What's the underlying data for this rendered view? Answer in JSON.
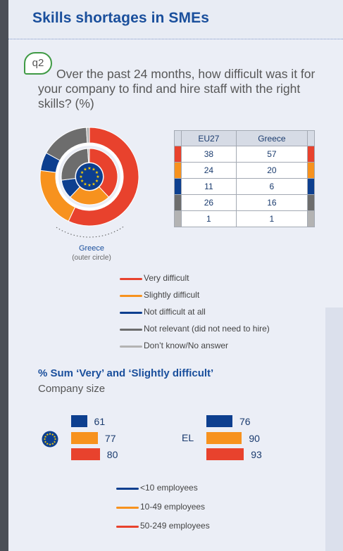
{
  "page_title": "Skills shortages in SMEs",
  "question": {
    "id": "q2",
    "text": "Over the past 24 months, how difficult was it for your company to find and hire staff with the right skills? (%)"
  },
  "colors": {
    "very_difficult": "#e8422d",
    "slightly_difficult": "#f7921e",
    "not_difficult": "#0d3f8f",
    "not_relevant": "#6d6d6d",
    "dont_know": "#b3b3b3",
    "title_blue": "#1a4f9c"
  },
  "icons": {
    "eu_flag": "eu-flag-icon"
  },
  "donut": {
    "outer_label": "Greece",
    "outer_sublabel": "(outer circle)"
  },
  "table": {
    "headers": [
      "EU27",
      "Greece"
    ],
    "rows": [
      {
        "eu27": "38",
        "greece": "57"
      },
      {
        "eu27": "24",
        "greece": "20"
      },
      {
        "eu27": "11",
        "greece": "6"
      },
      {
        "eu27": "26",
        "greece": "16"
      },
      {
        "eu27": "1",
        "greece": "1"
      }
    ]
  },
  "legend": [
    {
      "label": "Very difficult",
      "color": "#e8422d"
    },
    {
      "label": "Slightly difficult",
      "color": "#f7921e"
    },
    {
      "label": "Not difficult at all",
      "color": "#0d3f8f"
    },
    {
      "label": "Not relevant (did not need to hire)",
      "color": "#6d6d6d"
    },
    {
      "label": "Don’t know/No answer",
      "color": "#b3b3b3"
    }
  ],
  "section2": {
    "title": "% Sum ‘Very’ and ‘Slightly difficult’",
    "subtitle": "Company size",
    "el_label": "EL"
  },
  "legend2": [
    {
      "label": "<10 employees",
      "color": "#0d3f8f"
    },
    {
      "label": "10-49 employees",
      "color": "#f7921e"
    },
    {
      "label": "50-249 employees",
      "color": "#e8422d"
    }
  ],
  "chart_data": [
    {
      "type": "pie",
      "title": "",
      "categories": [
        "Very difficult",
        "Slightly difficult",
        "Not difficult at all",
        "Not relevant (did not need to hire)",
        "Don’t know/No answer"
      ],
      "series": [
        {
          "name": "EU27",
          "values": [
            38,
            24,
            11,
            26,
            1
          ]
        },
        {
          "name": "Greece",
          "values": [
            57,
            20,
            6,
            16,
            1
          ]
        }
      ]
    },
    {
      "type": "bar",
      "title": "% Sum ‘Very’ and ‘Slightly difficult’",
      "xlabel": "Company size",
      "categories": [
        "<10 employees",
        "10-49 employees",
        "50-249 employees"
      ],
      "series": [
        {
          "name": "EU27",
          "values": [
            61,
            77,
            80
          ]
        },
        {
          "name": "EL",
          "values": [
            76,
            90,
            93
          ]
        }
      ],
      "ylim": [
        0,
        100
      ]
    }
  ]
}
